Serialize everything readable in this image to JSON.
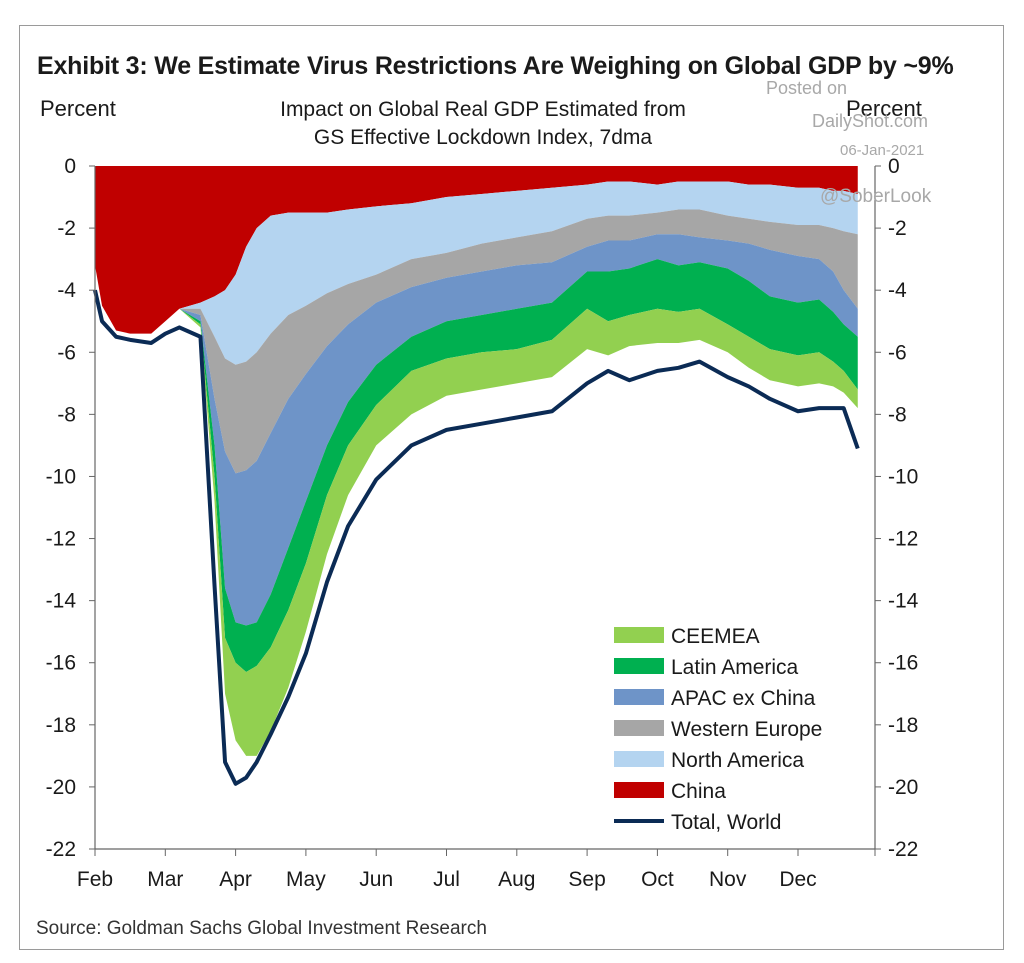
{
  "title": "Exhibit 3: We Estimate Virus Restrictions Are Weighing on Global GDP by ~9%",
  "subtitle_line1": "Impact on Global Real GDP Estimated from",
  "subtitle_line2": "GS Effective Lockdown Index, 7dma",
  "ylabel_left": "Percent",
  "ylabel_right": "Percent",
  "source": "Source: Goldman Sachs Global Investment Research",
  "watermark": {
    "line1": "Posted on",
    "line2": "DailyShot.com",
    "date": "06-Jan-2021",
    "handle": "@SoberLook"
  },
  "colors": {
    "CEEMEA": "#92d050",
    "Latin America": "#00b050",
    "APAC ex China": "#6e94c8",
    "Western Europe": "#a6a6a6",
    "North America": "#b4d4f0",
    "China": "#c00000",
    "Total, World": "#0b2b55"
  },
  "chart_data": {
    "type": "area",
    "stacked": true,
    "ylim": [
      -22,
      0
    ],
    "yticks": [
      0,
      -2,
      -4,
      -6,
      -8,
      -10,
      -12,
      -14,
      -16,
      -18,
      -20,
      -22
    ],
    "x_tick_labels": [
      "Feb",
      "Mar",
      "Apr",
      "May",
      "Jun",
      "Jul",
      "Aug",
      "Sep",
      "Oct",
      "Nov",
      "Dec"
    ],
    "x_month_positions": [
      0,
      1,
      2,
      3,
      4,
      5,
      6,
      7,
      8,
      9,
      10
    ],
    "xlim": [
      0,
      11
    ],
    "x": [
      0,
      0.1,
      0.3,
      0.5,
      0.8,
      1.0,
      1.2,
      1.5,
      1.7,
      1.85,
      2.0,
      2.15,
      2.3,
      2.5,
      2.75,
      3.0,
      3.3,
      3.6,
      4.0,
      4.5,
      5.0,
      5.5,
      6.0,
      6.5,
      7.0,
      7.3,
      7.6,
      8.0,
      8.3,
      8.6,
      9.0,
      9.3,
      9.6,
      10.0,
      10.3,
      10.5,
      10.65,
      10.85
    ],
    "series": [
      {
        "name": "China",
        "cumulative": [
          -3.2,
          -4.5,
          -5.3,
          -5.4,
          -5.4,
          -5.0,
          -4.6,
          -4.4,
          -4.2,
          -4.0,
          -3.5,
          -2.6,
          -2.0,
          -1.6,
          -1.5,
          -1.5,
          -1.5,
          -1.4,
          -1.3,
          -1.2,
          -1.0,
          -0.9,
          -0.8,
          -0.7,
          -0.6,
          -0.5,
          -0.5,
          -0.6,
          -0.5,
          -0.5,
          -0.5,
          -0.6,
          -0.6,
          -0.7,
          -0.7,
          -0.8,
          -0.8,
          -0.9
        ]
      },
      {
        "name": "North America",
        "cumulative": [
          -3.2,
          -4.5,
          -5.3,
          -5.4,
          -5.4,
          -5.0,
          -4.6,
          -4.6,
          -5.5,
          -6.2,
          -6.4,
          -6.3,
          -6.0,
          -5.4,
          -4.8,
          -4.5,
          -4.1,
          -3.8,
          -3.5,
          -3.0,
          -2.8,
          -2.5,
          -2.3,
          -2.1,
          -1.7,
          -1.6,
          -1.6,
          -1.5,
          -1.4,
          -1.4,
          -1.6,
          -1.7,
          -1.8,
          -1.9,
          -1.9,
          -2.0,
          -2.1,
          -2.2
        ]
      },
      {
        "name": "Western Europe",
        "cumulative": [
          -3.2,
          -4.5,
          -5.3,
          -5.4,
          -5.4,
          -5.0,
          -4.6,
          -4.8,
          -7.5,
          -9.2,
          -9.9,
          -9.8,
          -9.5,
          -8.6,
          -7.5,
          -6.7,
          -5.8,
          -5.1,
          -4.4,
          -3.9,
          -3.6,
          -3.4,
          -3.2,
          -3.1,
          -2.6,
          -2.4,
          -2.4,
          -2.2,
          -2.2,
          -2.3,
          -2.4,
          -2.5,
          -2.7,
          -2.9,
          -3.0,
          -3.4,
          -4.0,
          -4.6
        ]
      },
      {
        "name": "APAC ex China",
        "cumulative": [
          -3.2,
          -4.5,
          -5.3,
          -5.4,
          -5.4,
          -5.0,
          -4.6,
          -5.0,
          -9.0,
          -13.6,
          -14.7,
          -14.8,
          -14.7,
          -13.8,
          -12.3,
          -10.8,
          -9.0,
          -7.6,
          -6.4,
          -5.5,
          -5.0,
          -4.8,
          -4.6,
          -4.4,
          -3.4,
          -3.4,
          -3.3,
          -3.0,
          -3.2,
          -3.1,
          -3.3,
          -3.7,
          -4.2,
          -4.4,
          -4.3,
          -4.7,
          -5.1,
          -5.5
        ]
      },
      {
        "name": "Latin America",
        "cumulative": [
          -3.2,
          -4.5,
          -5.3,
          -5.4,
          -5.4,
          -5.0,
          -4.6,
          -5.1,
          -10.0,
          -15.2,
          -16.0,
          -16.3,
          -16.1,
          -15.5,
          -14.3,
          -12.8,
          -10.6,
          -9.0,
          -7.7,
          -6.6,
          -6.2,
          -6.0,
          -5.9,
          -5.6,
          -4.6,
          -5.0,
          -4.8,
          -4.6,
          -4.7,
          -4.6,
          -5.1,
          -5.5,
          -5.9,
          -6.1,
          -6.0,
          -6.3,
          -6.6,
          -7.2
        ]
      },
      {
        "name": "CEEMEA",
        "cumulative": [
          -3.2,
          -4.5,
          -5.3,
          -5.4,
          -5.4,
          -5.0,
          -4.6,
          -5.2,
          -10.8,
          -17.0,
          -18.5,
          -19.0,
          -19.0,
          -18.2,
          -16.8,
          -15.0,
          -12.5,
          -10.6,
          -9.0,
          -8.0,
          -7.4,
          -7.2,
          -7.0,
          -6.8,
          -5.9,
          -6.1,
          -5.8,
          -5.7,
          -5.7,
          -5.6,
          -6.0,
          -6.5,
          -6.9,
          -7.1,
          -7.0,
          -7.1,
          -7.3,
          -7.8
        ]
      },
      {
        "name": "Total, World",
        "line": true,
        "values": [
          -4.0,
          -5.0,
          -5.5,
          -5.6,
          -5.7,
          -5.4,
          -5.2,
          -5.5,
          -13.5,
          -19.2,
          -19.9,
          -19.7,
          -19.2,
          -18.3,
          -17.1,
          -15.7,
          -13.4,
          -11.6,
          -10.1,
          -9.0,
          -8.5,
          -8.3,
          -8.1,
          -7.9,
          -7.0,
          -6.6,
          -6.9,
          -6.6,
          -6.5,
          -6.3,
          -6.8,
          -7.1,
          -7.5,
          -7.9,
          -7.8,
          -7.8,
          -7.8,
          -9.1
        ]
      }
    ],
    "legend": [
      "CEEMEA",
      "Latin America",
      "APAC ex China",
      "Western Europe",
      "North America",
      "China",
      "Total, World"
    ],
    "legend_position": "bottom-right",
    "grid": false
  }
}
